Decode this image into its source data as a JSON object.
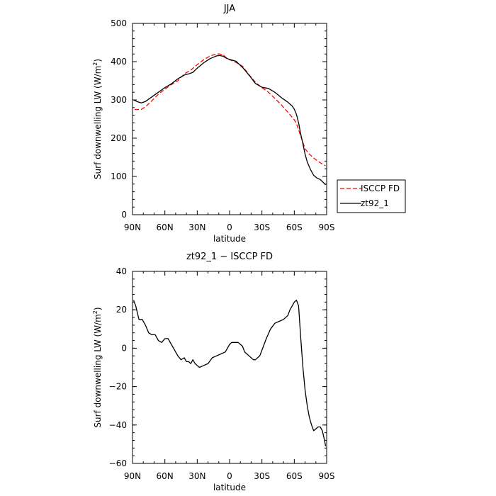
{
  "chart_data": [
    {
      "type": "line",
      "title": "JJA",
      "xlabel": "latitude",
      "ylabel": "Surf downwelling LW (W/m²)",
      "ylabel_main": "Surf downwelling LW (W/m",
      "ylabel_sup": "2",
      "ylabel_close": ")",
      "xlim": [
        -90,
        90
      ],
      "ylim": [
        0,
        500
      ],
      "x_ticks": [
        -90,
        -60,
        -30,
        0,
        30,
        60,
        90
      ],
      "x_tick_labels": [
        "90N",
        "60N",
        "30N",
        "0",
        "30S",
        "60S",
        "90S"
      ],
      "y_ticks": [
        0,
        100,
        200,
        300,
        400,
        500
      ],
      "y_tick_labels": [
        "0",
        "100",
        "200",
        "300",
        "400",
        "500"
      ],
      "grid": false,
      "legend_position": "right, outside plot area",
      "series": [
        {
          "name": "ISCCP FD",
          "color": "#ff0000",
          "dash": "dashed",
          "x": [
            -88,
            -82,
            -78,
            -72,
            -66,
            -60,
            -54,
            -48,
            -42,
            -36,
            -30,
            -24,
            -18,
            -12,
            -9,
            -6,
            -3,
            0,
            6,
            12,
            18,
            24,
            30,
            36,
            42,
            48,
            54,
            60,
            62,
            66,
            70,
            74,
            78,
            82,
            86,
            89
          ],
          "y": [
            275,
            275,
            282,
            298,
            315,
            328,
            340,
            350,
            368,
            378,
            392,
            405,
            415,
            420,
            420,
            418,
            410,
            405,
            398,
            388,
            366,
            346,
            332,
            320,
            304,
            287,
            268,
            248,
            238,
            205,
            172,
            158,
            148,
            140,
            132,
            128
          ]
        },
        {
          "name": "zt92_1",
          "color": "#000000",
          "dash": "solid",
          "x": [
            -89,
            -86,
            -82,
            -78,
            -72,
            -66,
            -60,
            -54,
            -48,
            -42,
            -38,
            -34,
            -30,
            -24,
            -18,
            -12,
            -9,
            -6,
            -3,
            0,
            6,
            12,
            18,
            24,
            30,
            36,
            42,
            48,
            54,
            58,
            60,
            62,
            64,
            66,
            68,
            70,
            72,
            75,
            78,
            81,
            84,
            87,
            89
          ],
          "y": [
            300,
            296,
            292,
            296,
            308,
            320,
            332,
            342,
            355,
            365,
            368,
            372,
            383,
            397,
            408,
            415,
            416,
            414,
            409,
            406,
            401,
            385,
            365,
            343,
            333,
            330,
            320,
            306,
            294,
            284,
            276,
            262,
            240,
            210,
            185,
            158,
            138,
            118,
            103,
            96,
            92,
            84,
            78
          ]
        }
      ]
    },
    {
      "type": "line",
      "title": "zt92_1 − ISCCP FD",
      "xlabel": "latitude",
      "ylabel": "Surf downwelling LW (W/m²)",
      "ylabel_main": "Surf downwelling LW (W/m",
      "ylabel_sup": "2",
      "ylabel_close": ")",
      "xlim": [
        -90,
        90
      ],
      "ylim": [
        -60,
        40
      ],
      "x_ticks": [
        -90,
        -60,
        -30,
        0,
        30,
        60,
        90
      ],
      "x_tick_labels": [
        "90N",
        "60N",
        "30N",
        "0",
        "30S",
        "60S",
        "90S"
      ],
      "y_ticks": [
        -60,
        -40,
        -20,
        0,
        20,
        40
      ],
      "y_tick_labels": [
        "−60",
        "−40",
        "−20",
        "0",
        "20",
        "40"
      ],
      "grid": false,
      "series": [
        {
          "name": "",
          "color": "#000000",
          "dash": "solid",
          "x": [
            -89,
            -87,
            -84,
            -81,
            -78,
            -75,
            -72,
            -69,
            -66,
            -63,
            -60,
            -57,
            -54,
            -51,
            -48,
            -45,
            -42,
            -40,
            -38,
            -36,
            -34,
            -32,
            -30,
            -28,
            -24,
            -20,
            -16,
            -12,
            -8,
            -4,
            -2,
            0,
            2,
            4,
            6,
            8,
            10,
            12,
            14,
            16,
            18,
            20,
            22,
            24,
            26,
            28,
            30,
            34,
            38,
            42,
            46,
            50,
            54,
            56,
            58,
            60,
            62,
            64,
            66,
            68,
            70,
            72,
            74,
            76,
            78,
            80,
            82,
            84,
            86,
            88,
            89
          ],
          "y": [
            25,
            22,
            15,
            15,
            12,
            8,
            7,
            7,
            4,
            3,
            5,
            5,
            2,
            -1,
            -4,
            -6,
            -5,
            -7,
            -7,
            -8,
            -6,
            -8,
            -9,
            -10,
            -9,
            -8,
            -5,
            -4,
            -3,
            -2,
            0,
            2,
            3,
            3,
            3,
            3,
            2,
            1,
            -2,
            -3,
            -4,
            -5,
            -6,
            -6,
            -5,
            -4,
            -1,
            5,
            10,
            13,
            14,
            15,
            17,
            20,
            22,
            24,
            25,
            22,
            5,
            -10,
            -22,
            -30,
            -36,
            -40,
            -43,
            -42,
            -41,
            -41,
            -43,
            -48,
            -51
          ]
        }
      ]
    }
  ],
  "legend": {
    "items": [
      {
        "label": "ISCCP FD",
        "color": "#ff0000",
        "dash": "dashed"
      },
      {
        "label": "zt92_1",
        "color": "#000000",
        "dash": "solid"
      }
    ]
  }
}
